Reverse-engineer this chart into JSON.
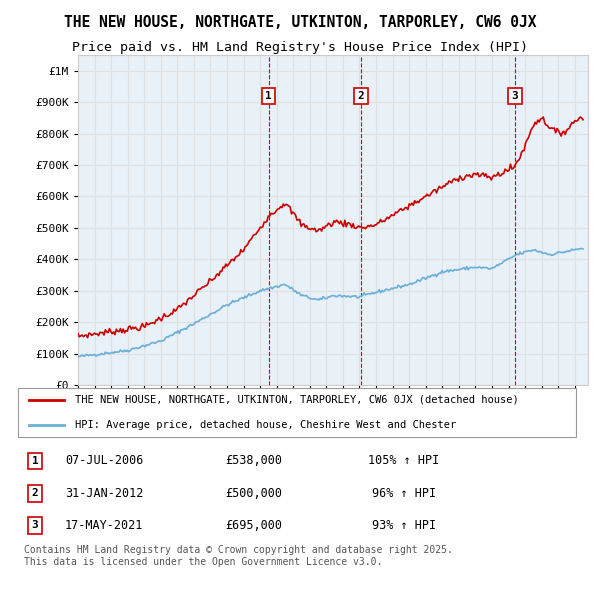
{
  "title": "THE NEW HOUSE, NORTHGATE, UTKINTON, TARPORLEY, CW6 0JX",
  "subtitle": "Price paid vs. HM Land Registry's House Price Index (HPI)",
  "legend_line1": "THE NEW HOUSE, NORTHGATE, UTKINTON, TARPORLEY, CW6 0JX (detached house)",
  "legend_line2": "HPI: Average price, detached house, Cheshire West and Chester",
  "footer": "Contains HM Land Registry data © Crown copyright and database right 2025.\nThis data is licensed under the Open Government Licence v3.0.",
  "transactions": [
    {
      "num": 1,
      "date": "07-JUL-2006",
      "price": 538000,
      "pct": "105%",
      "dir": "↑",
      "x_year": 2006.52
    },
    {
      "num": 2,
      "date": "31-JAN-2012",
      "price": 500000,
      "pct": "96%",
      "dir": "↑",
      "x_year": 2012.08
    },
    {
      "num": 3,
      "date": "17-MAY-2021",
      "price": 695000,
      "pct": "93%",
      "dir": "↑",
      "x_year": 2021.38
    }
  ],
  "ylim": [
    0,
    1050000
  ],
  "xlim_start": 1995,
  "xlim_end": 2025.5,
  "hpi_color": "#6baed6",
  "sale_color": "#cc0000",
  "vline_color": "#cc0000",
  "grid_color": "#e0e0e0",
  "background_color": "#e8f0f8"
}
